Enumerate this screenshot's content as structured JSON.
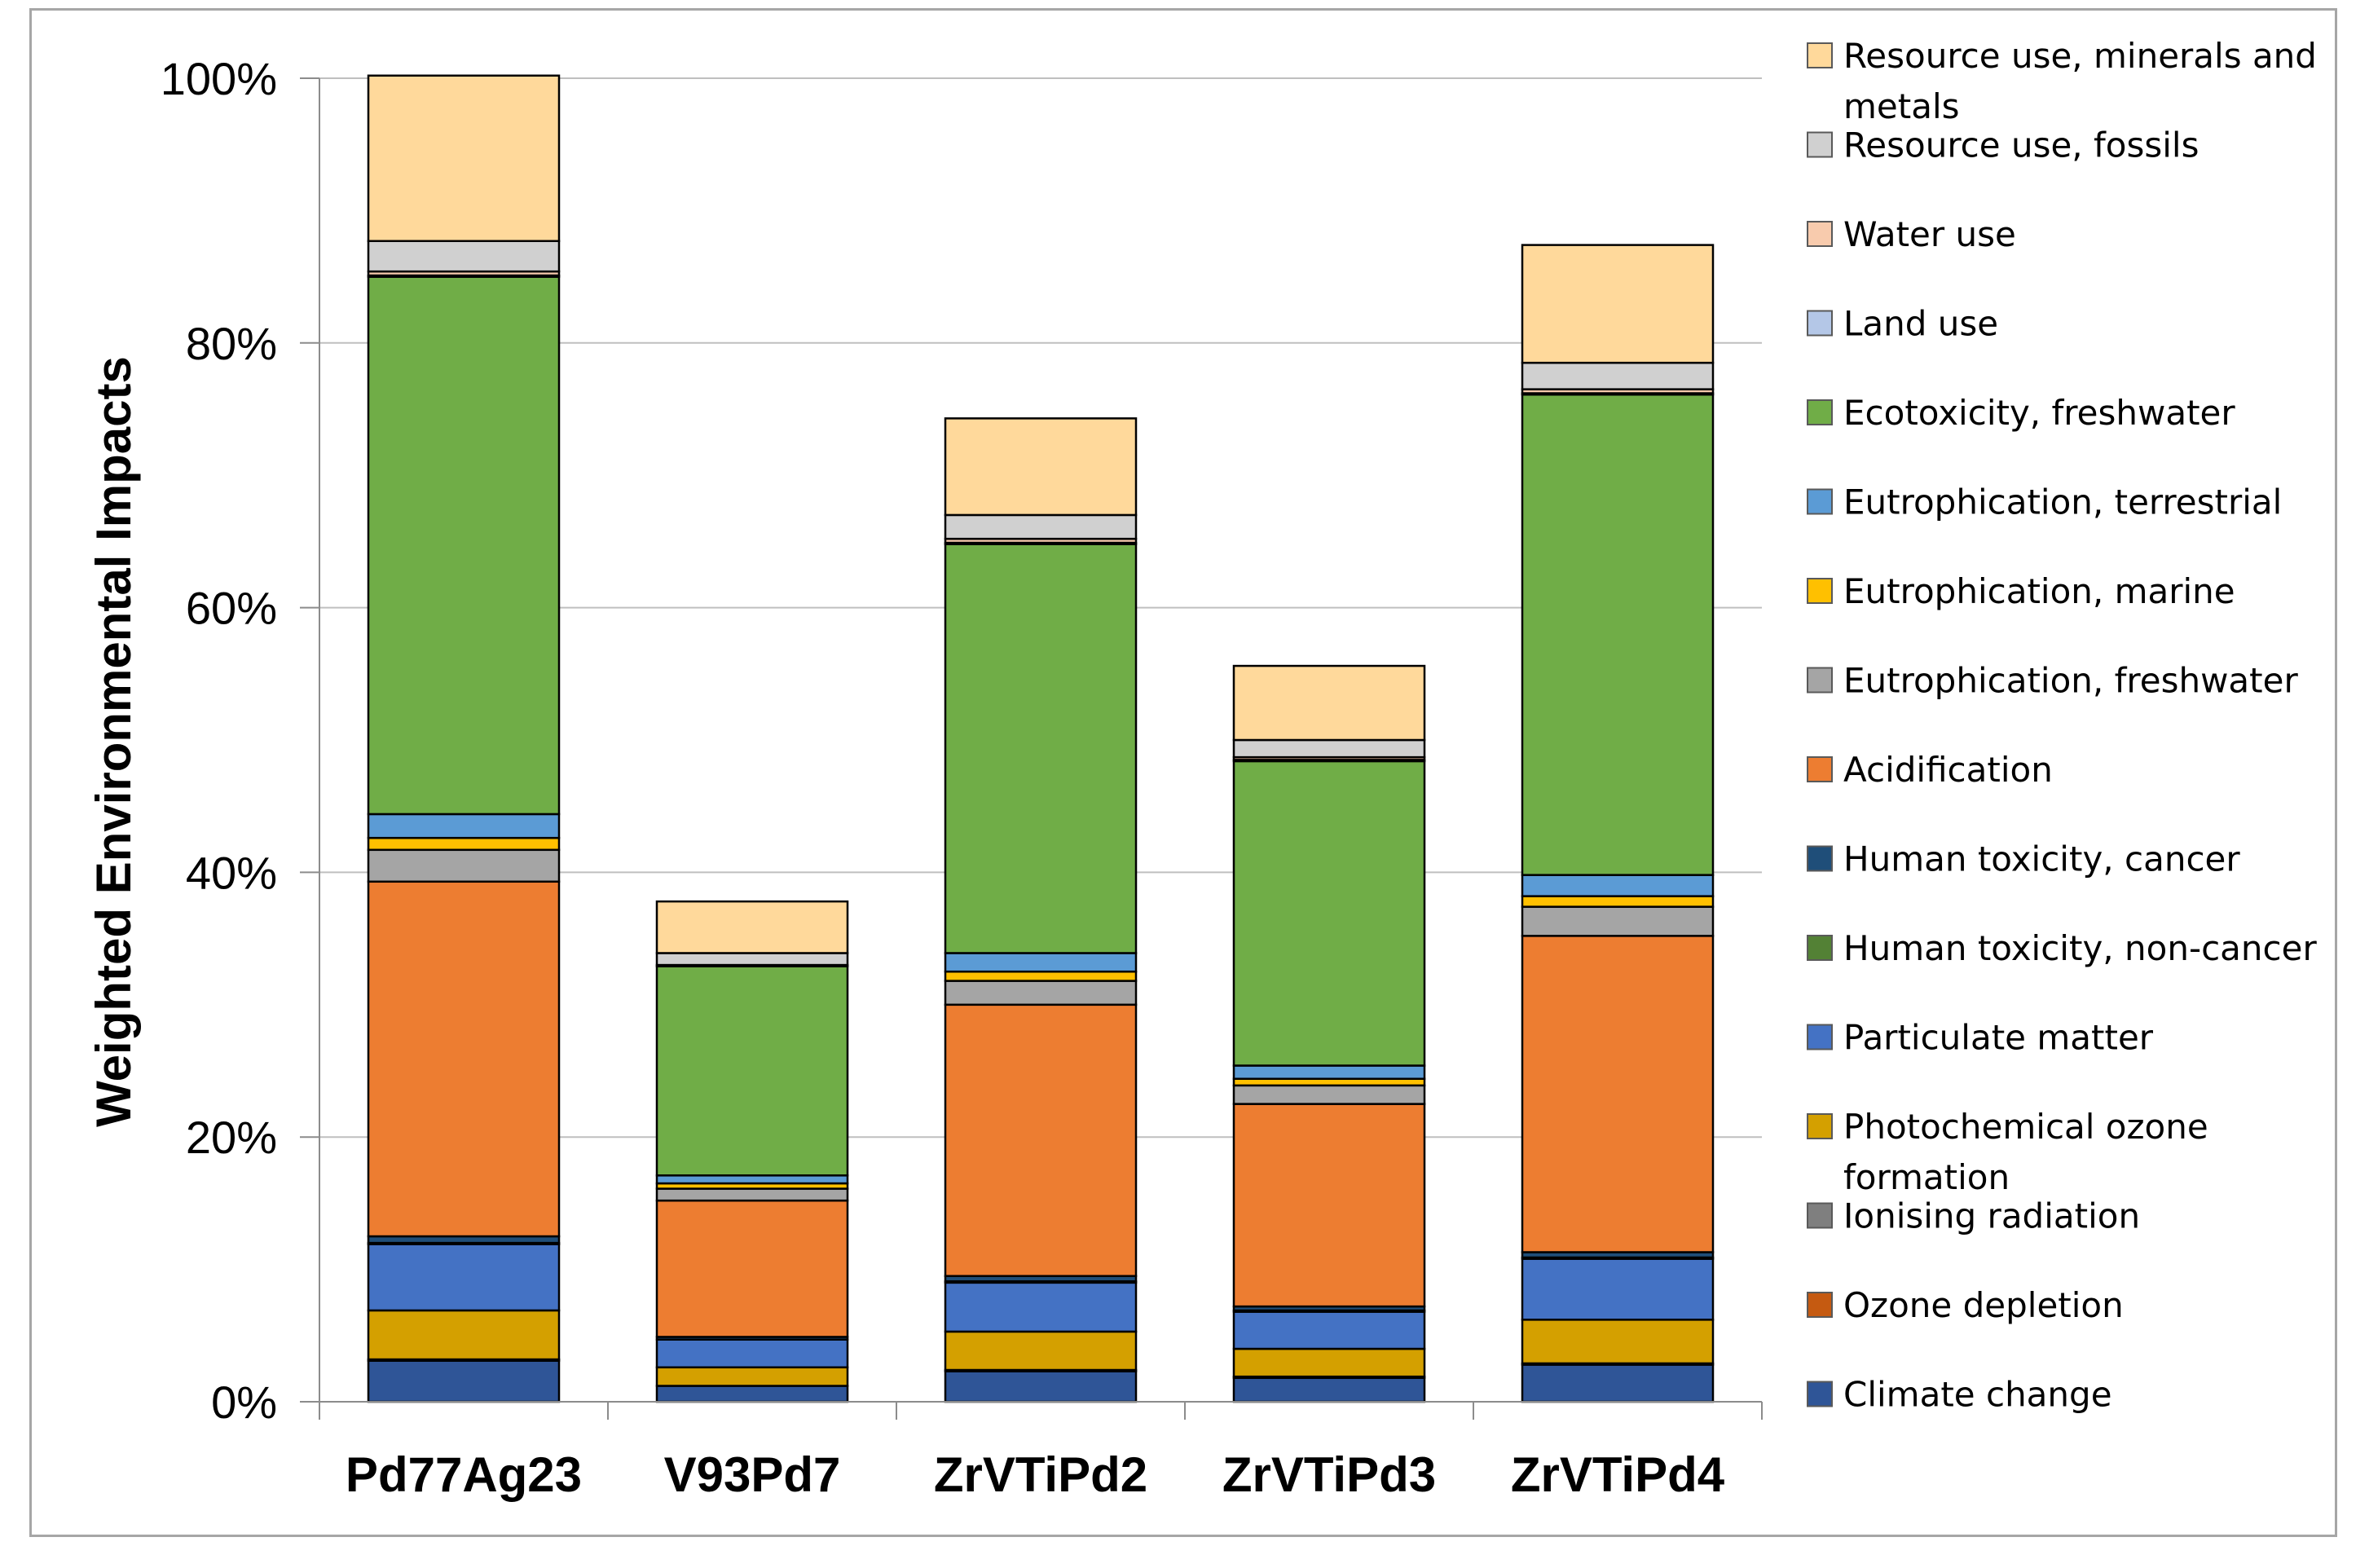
{
  "chart_data": {
    "type": "bar",
    "stacked": true,
    "title": "",
    "xlabel": "",
    "ylabel": "Weighted Environmental Impacts",
    "ylim": [
      0,
      100
    ],
    "yticks": [
      "0%",
      "20%",
      "40%",
      "60%",
      "80%",
      "100%"
    ],
    "ytick_values": [
      0,
      20,
      40,
      60,
      80,
      100
    ],
    "grid": true,
    "legend_position": "right",
    "categories": [
      "Pd77Ag23",
      "V93Pd7",
      "ZrVTiPd2",
      "ZrVTiPd3",
      "ZrVTiPd4"
    ],
    "series": [
      {
        "name": "Climate change",
        "color": "#2f5597",
        "values": [
          3.1,
          1.2,
          2.3,
          1.8,
          2.8
        ]
      },
      {
        "name": "Ozone depletion",
        "color": "#c55a11",
        "values": [
          0.0,
          0.0,
          0.0,
          0.0,
          0.0
        ]
      },
      {
        "name": "Ionising radiation",
        "color": "#7f7f7f",
        "values": [
          0.1,
          0.0,
          0.1,
          0.1,
          0.1
        ]
      },
      {
        "name": "Photochemical ozone formation",
        "color": "#d4a000",
        "values": [
          3.7,
          1.4,
          2.9,
          2.1,
          3.3
        ]
      },
      {
        "name": "Particulate matter",
        "color": "#4472c4",
        "values": [
          5.0,
          2.1,
          3.7,
          2.8,
          4.6
        ]
      },
      {
        "name": "Human toxicity, non-cancer",
        "color": "#538135",
        "values": [
          0.1,
          0.0,
          0.1,
          0.1,
          0.1
        ]
      },
      {
        "name": "Human toxicity, cancer",
        "color": "#1f4e79",
        "values": [
          0.5,
          0.2,
          0.4,
          0.3,
          0.4
        ]
      },
      {
        "name": "Acidification",
        "color": "#ed7d31",
        "values": [
          26.8,
          10.3,
          20.5,
          15.3,
          23.9
        ]
      },
      {
        "name": "Eutrophication, freshwater",
        "color": "#a5a5a5",
        "values": [
          2.4,
          0.9,
          1.8,
          1.4,
          2.2
        ]
      },
      {
        "name": "Eutrophication, marine",
        "color": "#ffc000",
        "values": [
          0.9,
          0.4,
          0.7,
          0.5,
          0.8
        ]
      },
      {
        "name": "Eutrophication, terrestrial",
        "color": "#5b9bd5",
        "values": [
          1.8,
          0.6,
          1.4,
          1.0,
          1.6
        ]
      },
      {
        "name": "Ecotoxicity, freshwater",
        "color": "#70ad47",
        "values": [
          40.6,
          15.8,
          30.9,
          23.0,
          36.3
        ]
      },
      {
        "name": "Land use",
        "color": "#b4c7e7",
        "values": [
          0.1,
          0.0,
          0.1,
          0.1,
          0.1
        ]
      },
      {
        "name": "Water use",
        "color": "#f8cbad",
        "values": [
          0.3,
          0.1,
          0.3,
          0.2,
          0.3
        ]
      },
      {
        "name": "Resource use, fossils",
        "color": "#d0d0d0",
        "values": [
          2.3,
          0.9,
          1.8,
          1.3,
          2.0
        ]
      },
      {
        "name": "Resource use, minerals and metals",
        "color": "#ffd99b",
        "values": [
          12.5,
          3.9,
          7.3,
          5.6,
          8.9
        ]
      }
    ]
  }
}
